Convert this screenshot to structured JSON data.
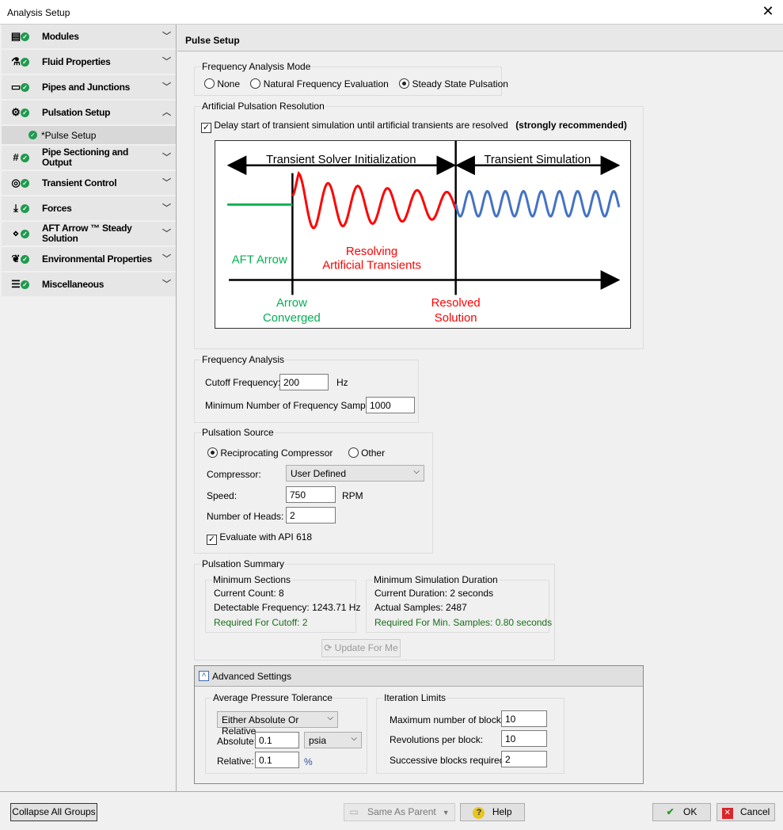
{
  "window": {
    "title": "Analysis Setup",
    "close": "✕"
  },
  "sidebar": {
    "items": [
      {
        "label": "Modules",
        "icon": "modules-icon",
        "glyph": "▤"
      },
      {
        "label": "Fluid Properties",
        "icon": "flask-icon",
        "glyph": "⚗"
      },
      {
        "label": "Pipes and Junctions",
        "icon": "pipe-icon",
        "glyph": "▭"
      },
      {
        "label": "Pulsation Setup",
        "icon": "pulsation-gear-icon",
        "glyph": "⚙"
      },
      {
        "label": "Pipe Sectioning and Output",
        "icon": "pipe-sectioning-icon",
        "glyph": "#"
      },
      {
        "label": "Transient Control",
        "icon": "stopwatch-icon",
        "glyph": "◎"
      },
      {
        "label": "Forces",
        "icon": "forces-icon",
        "glyph": "⤓"
      },
      {
        "label": "AFT Arrow ™ Steady Solution",
        "icon": "flowchart-icon",
        "glyph": "⋄"
      },
      {
        "label": "Environmental Properties",
        "icon": "leaf-icon",
        "glyph": "❦"
      },
      {
        "label": "Miscellaneous",
        "icon": "list-icon",
        "glyph": "☰"
      }
    ],
    "subitem": "*Pulse Setup"
  },
  "header": {
    "title": "Pulse Setup"
  },
  "freq_mode": {
    "label": "Frequency Analysis Mode",
    "options": [
      "None",
      "Natural Frequency Evaluation",
      "Steady State Pulsation"
    ],
    "selected": "Steady State Pulsation"
  },
  "artificial": {
    "label": "Artificial Pulsation Resolution",
    "checkbox": "Delay start of transient simulation until artificial transients are resolved",
    "note": "(strongly recommended)",
    "checked": true,
    "diagram": {
      "init": "Transient Solver Initialization",
      "sim": "Transient Simulation",
      "aft": "AFT Arrow",
      "resolving1": "Resolving",
      "resolving2": "Artificial Transients",
      "arrow1": "Arrow",
      "arrow2": "Converged",
      "resolved1": "Resolved",
      "resolved2": "Solution",
      "colors": {
        "green": "#00b050",
        "red": "#ff0000",
        "blue": "#4472c4"
      }
    }
  },
  "freq_analysis": {
    "label": "Frequency Analysis",
    "cutoff_label": "Cutoff Frequency:",
    "cutoff": "200",
    "cutoff_unit": "Hz",
    "min_samples_label": "Minimum Number of Frequency Samples:",
    "min_samples": "1000"
  },
  "source": {
    "label": "Pulsation Source",
    "options": [
      "Reciprocating Compressor",
      "Other"
    ],
    "selected": "Reciprocating Compressor",
    "compressor_label": "Compressor:",
    "compressor": "User Defined",
    "speed_label": "Speed:",
    "speed": "750",
    "speed_unit": "RPM",
    "heads_label": "Number of Heads:",
    "heads": "2",
    "api_label": "Evaluate with API 618",
    "api_checked": true
  },
  "summary": {
    "label": "Pulsation Summary",
    "sections": {
      "label": "Minimum Sections",
      "count": "Current Count: 8",
      "freq": "Detectable Frequency: 1243.71 Hz",
      "required": "Required For Cutoff: 2"
    },
    "duration": {
      "label": "Minimum Simulation Duration",
      "current": "Current Duration: 2 seconds",
      "samples": "Actual Samples: 2487",
      "required": "Required For Min. Samples: 0.80 seconds"
    },
    "update": "Update For Me"
  },
  "advanced": {
    "label": "Advanced Settings",
    "toggle": "−",
    "apt": {
      "label": "Average Pressure Tolerance",
      "mode": "Either Absolute Or Relative",
      "abs_label": "Absolute:",
      "abs": "0.1",
      "abs_unit": "psia",
      "rel_label": "Relative:",
      "rel": "0.1",
      "rel_unit": "%"
    },
    "iter": {
      "label": "Iteration Limits",
      "max_label": "Maximum number of blocks:",
      "max": "10",
      "rev_label": "Revolutions per block:",
      "rev": "10",
      "succ_label": "Successive blocks required:",
      "succ": "2"
    }
  },
  "footer": {
    "collapse": "Collapse All Groups",
    "same": "Same As Parent",
    "help": "Help",
    "ok": "OK",
    "cancel": "Cancel"
  }
}
